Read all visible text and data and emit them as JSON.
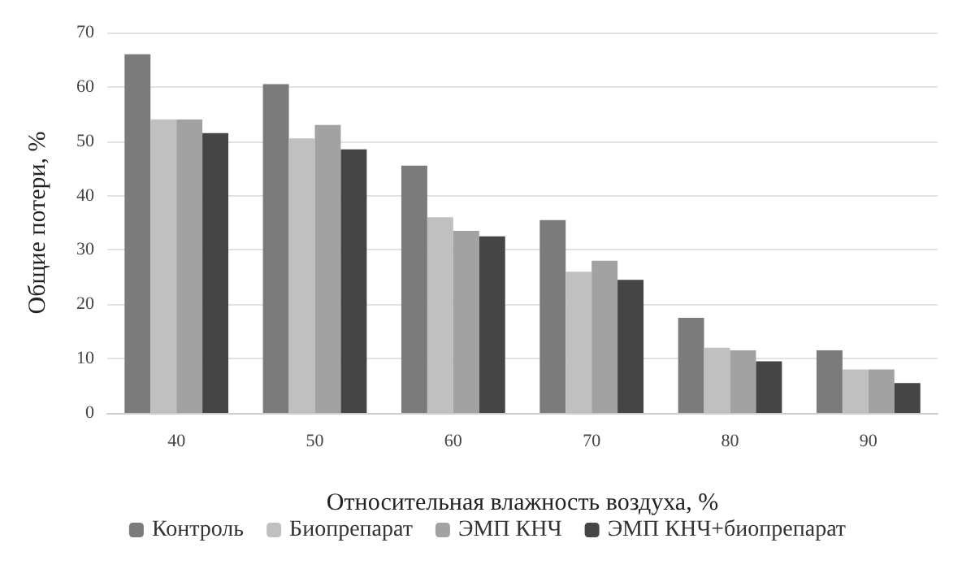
{
  "chart_data": {
    "type": "bar",
    "xlabel": "Относительная влажность воздуха, %",
    "ylabel": "Общие потери, %",
    "categories": [
      "40",
      "50",
      "60",
      "70",
      "80",
      "90"
    ],
    "series": [
      {
        "name": "Контроль",
        "color": "#7b7b7b",
        "values": [
          66,
          60.5,
          45.5,
          35.5,
          17.5,
          11.5
        ]
      },
      {
        "name": "Биопрепарат",
        "color": "#c0c0c0",
        "values": [
          54,
          50.5,
          36,
          26,
          12,
          8
        ]
      },
      {
        "name": "ЭМП КНЧ",
        "color": "#a2a2a2",
        "values": [
          54,
          53,
          33.5,
          28,
          11.5,
          8
        ]
      },
      {
        "name": "ЭМП КНЧ+биопрепарат",
        "color": "#454545",
        "values": [
          51.5,
          48.5,
          32.5,
          24.5,
          9.5,
          5.5
        ]
      }
    ],
    "ylim": [
      0,
      70
    ],
    "yticks": [
      0,
      10,
      20,
      30,
      40,
      50,
      60,
      70
    ],
    "grid": "y",
    "legend": "bottom"
  }
}
